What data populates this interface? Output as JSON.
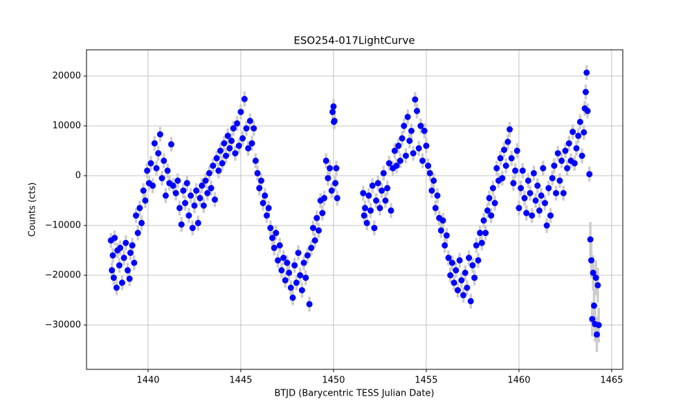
{
  "chart_data": {
    "type": "scatter",
    "title": "ESO254-017LightCurve",
    "x_label": "BTJD (Barycentric TESS Julian Date)",
    "y_label": "Counts (cts)",
    "grid": true,
    "xlim": [
      1436.68,
      1465.6
    ],
    "ylim": [
      -38890,
      25280
    ],
    "xticks": [
      1440,
      1445,
      1450,
      1455,
      1460,
      1465
    ],
    "yticks": [
      {
        "value": -30000,
        "label": "−30000"
      },
      {
        "value": -20000,
        "label": "−20000"
      },
      {
        "value": -10000,
        "label": "−10000"
      },
      0,
      10000,
      20000
    ],
    "x": [
      1438.0,
      1438.05,
      1438.1,
      1438.15,
      1438.2,
      1438.3,
      1438.35,
      1438.45,
      1438.5,
      1438.6,
      1438.7,
      1438.8,
      1438.9,
      1439.0,
      1439.05,
      1439.15,
      1439.25,
      1439.35,
      1439.45,
      1439.55,
      1439.65,
      1439.75,
      1439.85,
      1439.95,
      1440.05,
      1440.15,
      1440.25,
      1440.35,
      1440.45,
      1440.55,
      1440.65,
      1440.75,
      1440.85,
      1440.95,
      1441.05,
      1441.15,
      1441.25,
      1441.35,
      1441.5,
      1441.6,
      1441.7,
      1441.8,
      1441.9,
      1442.0,
      1442.1,
      1442.2,
      1442.3,
      1442.4,
      1442.5,
      1442.6,
      1442.7,
      1442.8,
      1442.9,
      1443.0,
      1443.1,
      1443.2,
      1443.3,
      1443.4,
      1443.5,
      1443.6,
      1443.7,
      1443.8,
      1443.9,
      1444.0,
      1444.1,
      1444.2,
      1444.3,
      1444.4,
      1444.5,
      1444.6,
      1444.7,
      1444.8,
      1444.9,
      1445.0,
      1445.1,
      1445.2,
      1445.3,
      1445.4,
      1445.5,
      1445.6,
      1445.7,
      1445.8,
      1445.9,
      1446.0,
      1446.1,
      1446.2,
      1446.3,
      1446.4,
      1446.5,
      1446.6,
      1446.7,
      1446.8,
      1446.9,
      1447.0,
      1447.1,
      1447.2,
      1447.3,
      1447.4,
      1447.5,
      1447.6,
      1447.7,
      1447.8,
      1447.9,
      1448.0,
      1448.1,
      1448.2,
      1448.3,
      1448.4,
      1448.5,
      1448.6,
      1448.7,
      1448.8,
      1448.9,
      1449.0,
      1449.1,
      1449.2,
      1449.3,
      1449.4,
      1449.5,
      1449.6,
      1449.7,
      1449.8,
      1449.9,
      1449.95,
      1450.0,
      1450.02,
      1450.05,
      1450.1,
      1450.15,
      1450.2,
      1451.6,
      1451.65,
      1451.7,
      1451.8,
      1451.9,
      1452.0,
      1452.1,
      1452.2,
      1452.3,
      1452.4,
      1452.5,
      1452.6,
      1452.7,
      1452.8,
      1452.9,
      1453.0,
      1453.1,
      1453.2,
      1453.3,
      1453.4,
      1453.5,
      1453.6,
      1453.7,
      1453.8,
      1453.9,
      1454.0,
      1454.1,
      1454.2,
      1454.3,
      1454.4,
      1454.5,
      1454.6,
      1454.7,
      1454.8,
      1454.9,
      1455.0,
      1455.1,
      1455.2,
      1455.3,
      1455.4,
      1455.5,
      1455.6,
      1455.7,
      1455.8,
      1455.9,
      1456.0,
      1456.1,
      1456.2,
      1456.3,
      1456.4,
      1456.5,
      1456.6,
      1456.7,
      1456.8,
      1456.9,
      1457.0,
      1457.1,
      1457.2,
      1457.3,
      1457.4,
      1457.5,
      1457.6,
      1457.7,
      1457.8,
      1457.9,
      1458.0,
      1458.1,
      1458.2,
      1458.3,
      1458.4,
      1458.5,
      1458.6,
      1458.7,
      1458.8,
      1458.9,
      1459.0,
      1459.1,
      1459.2,
      1459.3,
      1459.4,
      1459.5,
      1459.6,
      1459.7,
      1459.8,
      1459.9,
      1460.0,
      1460.1,
      1460.2,
      1460.3,
      1460.4,
      1460.5,
      1460.6,
      1460.7,
      1460.8,
      1460.9,
      1461.0,
      1461.1,
      1461.2,
      1461.3,
      1461.4,
      1461.5,
      1461.6,
      1461.7,
      1461.8,
      1461.9,
      1462.0,
      1462.1,
      1462.2,
      1462.3,
      1462.4,
      1462.5,
      1462.6,
      1462.7,
      1462.8,
      1462.9,
      1463.0,
      1463.1,
      1463.2,
      1463.3,
      1463.4,
      1463.5,
      1463.55,
      1463.6,
      1463.65,
      1463.7,
      1463.8,
      1463.85,
      1463.9,
      1463.95,
      1464.0,
      1464.05,
      1464.1,
      1464.15,
      1464.2,
      1464.25,
      1464.3
    ],
    "series": [
      {
        "color": "#0000ff",
        "error_color": "#cccccc",
        "values": [
          -13000,
          -19000,
          -16000,
          -20500,
          -12500,
          -22500,
          -15000,
          -18000,
          -14500,
          -21500,
          -16500,
          -13500,
          -19000,
          -20700,
          -15500,
          -14000,
          -17500,
          -8000,
          -11500,
          -6500,
          -9500,
          -3000,
          -5000,
          1000,
          -1500,
          2500,
          -2000,
          6500,
          1500,
          4500,
          8300,
          -500,
          3000,
          -4000,
          1000,
          -1500,
          6300,
          -2000,
          -3500,
          -1000,
          -6500,
          -9800,
          -3000,
          -5500,
          -1500,
          -8000,
          -4000,
          -10500,
          -6000,
          -3000,
          -9500,
          -4500,
          -2000,
          -6000,
          -1000,
          -3500,
          500,
          -2500,
          2000,
          -4800,
          3500,
          1000,
          5000,
          2500,
          6500,
          4000,
          8000,
          5500,
          7000,
          9500,
          4500,
          10500,
          6000,
          12800,
          7500,
          15400,
          9500,
          5500,
          11000,
          6500,
          9500,
          3000,
          500,
          -2500,
          -1000,
          -5500,
          -4000,
          -8000,
          -6500,
          -10500,
          -12500,
          -14500,
          -11500,
          -17000,
          -14000,
          -19000,
          -16500,
          -21000,
          -17500,
          -19500,
          -22500,
          -24500,
          -18000,
          -21500,
          -15500,
          -20000,
          -23000,
          -17500,
          -20500,
          -16000,
          -25800,
          -14500,
          -10500,
          -13000,
          -8500,
          -11000,
          -5000,
          -7500,
          -4500,
          3000,
          -500,
          1500,
          -3000,
          12800,
          13900,
          10800,
          11000,
          -1500,
          1500,
          -4500,
          -3500,
          -8000,
          -6500,
          -9500,
          -4000,
          -7000,
          -2000,
          -10500,
          -5000,
          -1500,
          -6500,
          -3000,
          500,
          -5000,
          -2500,
          2500,
          -7000,
          1500,
          5000,
          2000,
          6000,
          3000,
          7500,
          10000,
          4000,
          11800,
          7000,
          9000,
          4500,
          15300,
          13000,
          5500,
          10000,
          3000,
          9000,
          6000,
          2000,
          500,
          -3000,
          -1000,
          -6500,
          -4000,
          -8500,
          -11000,
          -9000,
          -14000,
          -12000,
          -16500,
          -20000,
          -17500,
          -21500,
          -19000,
          -23000,
          -17000,
          -21000,
          -24000,
          -19500,
          -22500,
          -16500,
          -25200,
          -18000,
          -20500,
          -14000,
          -17000,
          -11500,
          -13500,
          -9000,
          -11500,
          -7000,
          -4500,
          -8000,
          -2500,
          -5500,
          1500,
          -1000,
          3500,
          -500,
          5200,
          2000,
          6800,
          9300,
          3500,
          -1500,
          1000,
          5000,
          -6500,
          -2500,
          1000,
          -4500,
          -7500,
          -1000,
          -3500,
          -8000,
          500,
          -5000,
          -2000,
          -7000,
          -4000,
          1500,
          -5500,
          -10000,
          -2500,
          -8000,
          -500,
          2000,
          -3500,
          4500,
          -1000,
          3000,
          -3500,
          5000,
          1500,
          6500,
          3000,
          8800,
          2500,
          5500,
          8000,
          10800,
          4000,
          8700,
          13500,
          16800,
          20700,
          13000,
          300,
          -12800,
          -17000,
          -28800,
          -19500,
          -26100,
          -29800,
          -20500,
          -31900,
          -22000,
          -30000
        ],
        "errors": [
          1500,
          1500,
          1500,
          1500,
          1500,
          1500,
          1500,
          1500,
          1500,
          1500,
          1500,
          1500,
          1500,
          1500,
          1500,
          1500,
          1500,
          1500,
          1500,
          1500,
          1500,
          1500,
          1500,
          1500,
          1500,
          1500,
          1500,
          1500,
          1500,
          1500,
          1500,
          1500,
          1500,
          1500,
          1500,
          1500,
          1500,
          1500,
          1500,
          1500,
          1500,
          1500,
          1500,
          1500,
          1500,
          1500,
          1500,
          1500,
          1500,
          1500,
          1500,
          1500,
          1500,
          1500,
          1500,
          1500,
          1500,
          1500,
          1500,
          1500,
          1500,
          1500,
          1500,
          1500,
          1500,
          1500,
          1500,
          1500,
          1500,
          1500,
          1500,
          1500,
          1500,
          1500,
          1500,
          1500,
          1500,
          1500,
          1500,
          1500,
          1500,
          1500,
          1500,
          1500,
          1500,
          1500,
          1500,
          1500,
          1500,
          1500,
          1500,
          1500,
          1500,
          1500,
          1500,
          1500,
          1500,
          1500,
          1500,
          1500,
          1500,
          1500,
          1500,
          1500,
          1500,
          1500,
          1500,
          1500,
          1500,
          1500,
          1500,
          1500,
          1500,
          1500,
          1500,
          1500,
          1500,
          1500,
          1500,
          1500,
          1500,
          1500,
          1500,
          1500,
          1500,
          1500,
          1500,
          1500,
          1500,
          1500,
          1500,
          1500,
          1500,
          1500,
          1500,
          1500,
          1500,
          1500,
          1500,
          1500,
          1500,
          1500,
          1500,
          1500,
          1500,
          1500,
          1500,
          1500,
          1500,
          1500,
          1500,
          1500,
          1500,
          1500,
          1500,
          1500,
          1500,
          1500,
          1500,
          1500,
          1500,
          1500,
          1500,
          1500,
          1500,
          1500,
          1500,
          1500,
          1500,
          1500,
          1500,
          1500,
          1500,
          1500,
          1500,
          1500,
          1500,
          1500,
          1500,
          1500,
          1500,
          1500,
          1500,
          1500,
          1500,
          1500,
          1500,
          1500,
          1500,
          1500,
          1500,
          1500,
          1500,
          1500,
          1500,
          1500,
          1500,
          1500,
          1500,
          1500,
          1500,
          1500,
          1500,
          1500,
          1500,
          1500,
          1500,
          1500,
          1500,
          1500,
          1500,
          1500,
          1500,
          1500,
          1500,
          1500,
          1500,
          1500,
          1500,
          1500,
          1500,
          1500,
          1500,
          1500,
          1500,
          1500,
          1500,
          1500,
          1500,
          1500,
          1500,
          1500,
          1500,
          1500,
          1500,
          1500,
          1500,
          1500,
          1500,
          1500,
          1500,
          1500,
          1500,
          1500,
          1500,
          1500,
          1500,
          1500,
          1500,
          1500,
          1500,
          1500,
          1500,
          1500,
          1500,
          1500,
          3500,
          3500,
          3500,
          3500,
          3500,
          3500,
          3500,
          3500,
          3500,
          3500
        ]
      }
    ]
  }
}
